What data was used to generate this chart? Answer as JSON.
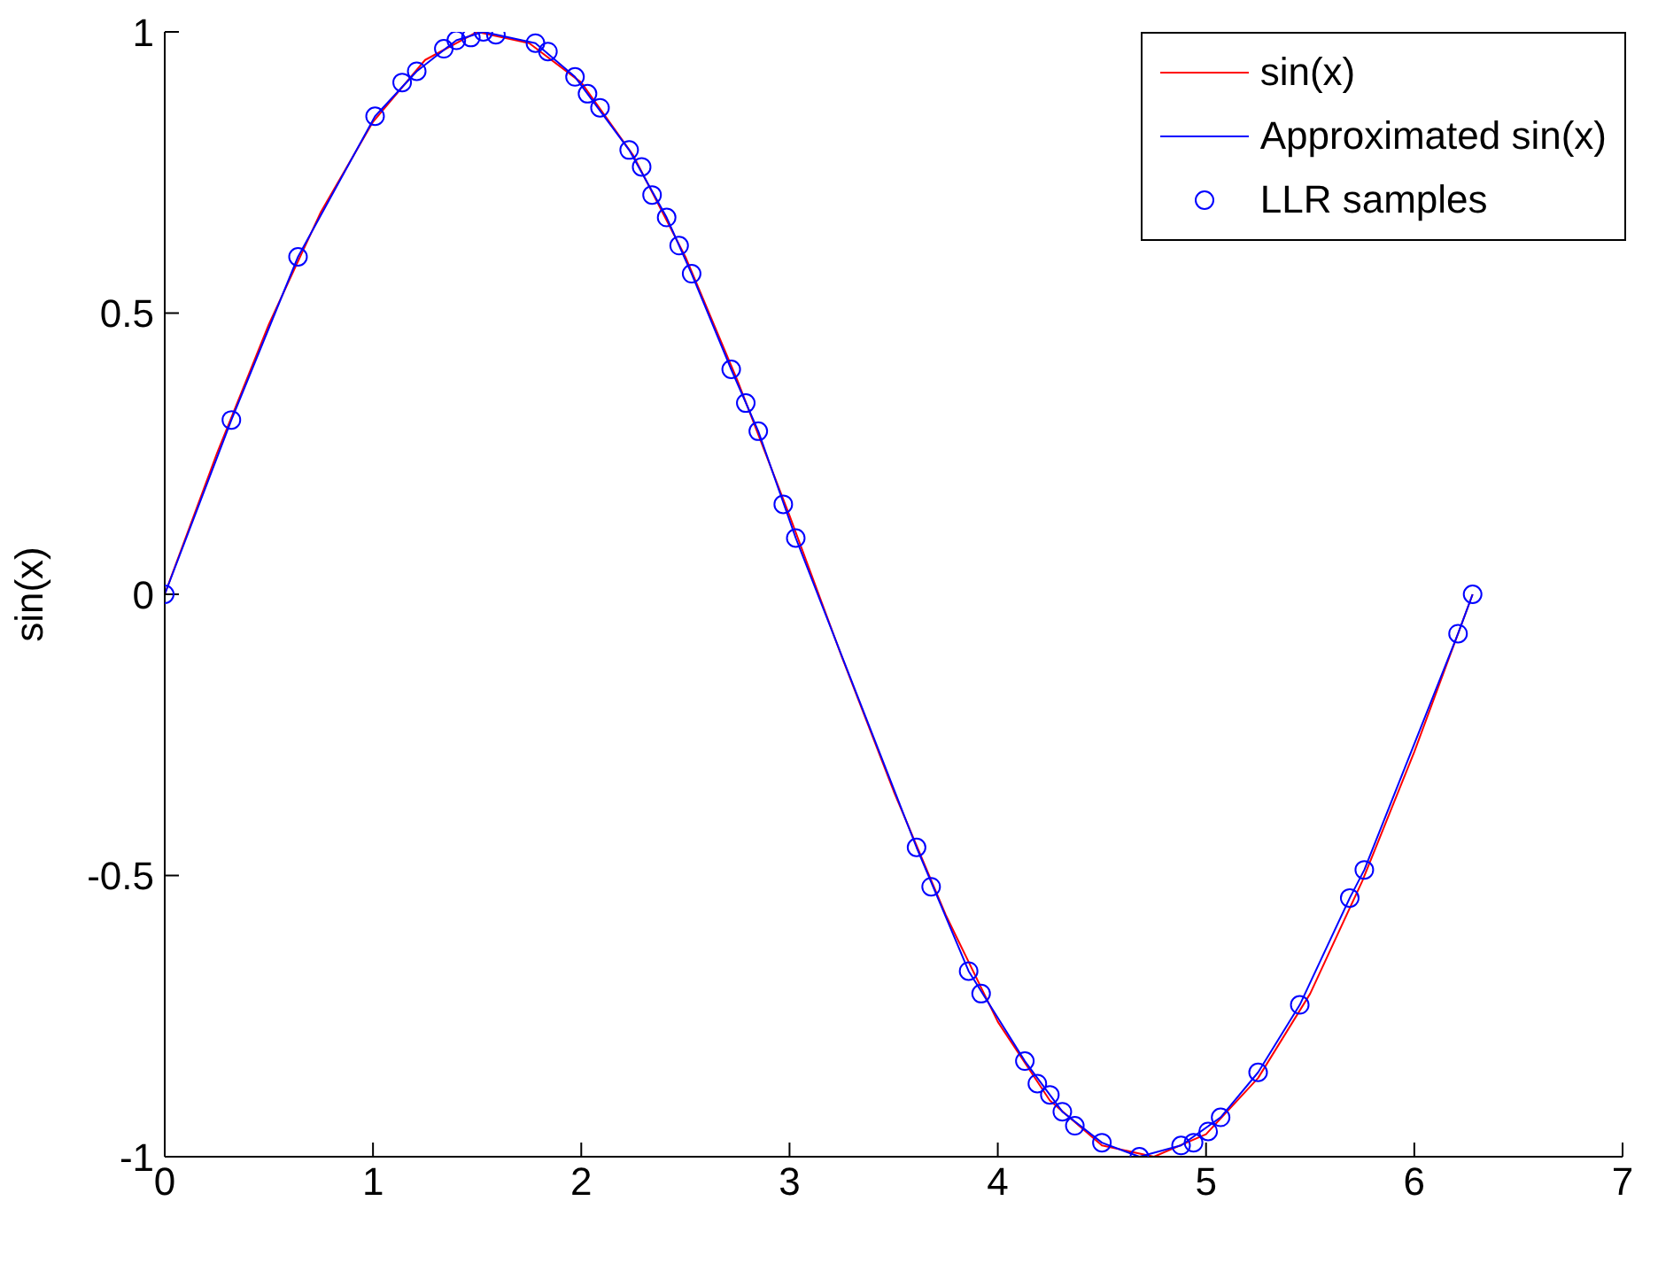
{
  "chart_data": {
    "type": "line",
    "ylabel": "sin(x)",
    "xlim": [
      0,
      7
    ],
    "xticks": [
      0,
      1,
      2,
      3,
      4,
      5,
      6,
      7
    ],
    "ylim": [
      -1,
      1
    ],
    "yticks": [
      -1,
      -0.5,
      0,
      0.5,
      1
    ],
    "legend": "top right",
    "grid": false,
    "series": [
      {
        "name": "sin(x)",
        "color": "#ff0000",
        "marker": "none",
        "line_style": "solid",
        "x": [
          0,
          0.25,
          0.5,
          0.75,
          1,
          1.25,
          1.5,
          1.75,
          2,
          2.25,
          2.5,
          2.75,
          3,
          3.25,
          3.5,
          3.75,
          4,
          4.25,
          4.5,
          4.75,
          5,
          5.25,
          5.5,
          5.75,
          6,
          6.28
        ],
        "values": [
          0,
          0.25,
          0.48,
          0.68,
          0.84,
          0.95,
          1,
          0.98,
          0.91,
          0.78,
          0.6,
          0.38,
          0.14,
          -0.11,
          -0.35,
          -0.57,
          -0.76,
          -0.9,
          -0.98,
          -1,
          -0.96,
          -0.86,
          -0.71,
          -0.51,
          -0.28,
          0
        ]
      },
      {
        "name": "Approximated sin(x)",
        "color": "#0000ff",
        "marker": "none",
        "line_style": "solid",
        "x": [
          0,
          0.32,
          0.64,
          1.01,
          1.21,
          1.4,
          1.53,
          1.78,
          1.97,
          2.23,
          2.41,
          2.53,
          2.72,
          2.85,
          3.03,
          3.61,
          3.86,
          4.13,
          4.31,
          4.5,
          4.68,
          4.88,
          5.07,
          5.25,
          5.45,
          5.69,
          5.76,
          6.21,
          6.28
        ],
        "values": [
          0,
          0.31,
          0.6,
          0.85,
          0.93,
          0.985,
          1,
          0.98,
          0.92,
          0.79,
          0.67,
          0.57,
          0.4,
          0.29,
          0.1,
          -0.45,
          -0.67,
          -0.83,
          -0.92,
          -0.975,
          -1,
          -0.98,
          -0.93,
          -0.85,
          -0.73,
          -0.54,
          -0.49,
          -0.07,
          0
        ]
      },
      {
        "name": "LLR samples",
        "type": "scatter",
        "color": "#0000ff",
        "marker": "circle",
        "x": [
          0,
          0.32,
          0.64,
          1.01,
          1.14,
          1.21,
          1.34,
          1.4,
          1.47,
          1.53,
          1.59,
          1.78,
          1.84,
          1.97,
          2.03,
          2.09,
          2.23,
          2.29,
          2.34,
          2.41,
          2.47,
          2.53,
          2.72,
          2.79,
          2.85,
          2.97,
          3.03,
          3.61,
          3.68,
          3.86,
          3.92,
          4.13,
          4.19,
          4.25,
          4.31,
          4.37,
          4.5,
          4.68,
          4.88,
          4.94,
          5.01,
          5.07,
          5.25,
          5.45,
          5.69,
          5.76,
          6.21,
          6.28
        ],
        "values": [
          0,
          0.31,
          0.6,
          0.85,
          0.91,
          0.93,
          0.97,
          0.985,
          0.99,
          1,
          0.995,
          0.98,
          0.965,
          0.92,
          0.89,
          0.865,
          0.79,
          0.76,
          0.71,
          0.67,
          0.62,
          0.57,
          0.4,
          0.34,
          0.29,
          0.16,
          0.1,
          -0.45,
          -0.52,
          -0.67,
          -0.71,
          -0.83,
          -0.87,
          -0.89,
          -0.92,
          -0.945,
          -0.975,
          -1,
          -0.98,
          -0.975,
          -0.955,
          -0.93,
          -0.85,
          -0.73,
          -0.54,
          -0.49,
          -0.07,
          0
        ]
      }
    ]
  }
}
